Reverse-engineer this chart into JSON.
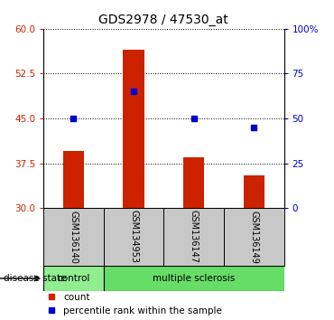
{
  "title": "GDS2978 / 47530_at",
  "samples": [
    "GSM136140",
    "GSM134953",
    "GSM136147",
    "GSM136149"
  ],
  "count_values": [
    39.5,
    56.5,
    38.5,
    35.5
  ],
  "percentile_values": [
    50,
    65,
    50,
    45
  ],
  "ylim_left": [
    30,
    60
  ],
  "ylim_right": [
    0,
    100
  ],
  "yticks_left": [
    30,
    37.5,
    45,
    52.5,
    60
  ],
  "yticks_right": [
    0,
    25,
    50,
    75,
    100
  ],
  "bar_color": "#cc2200",
  "dot_color": "#0000cc",
  "bar_width": 0.35,
  "label_box_color": "#c8c8c8",
  "control_color": "#90ee90",
  "ms_color": "#66dd66",
  "legend_count_label": "count",
  "legend_pct_label": "percentile rank within the sample",
  "disease_label": "disease state"
}
